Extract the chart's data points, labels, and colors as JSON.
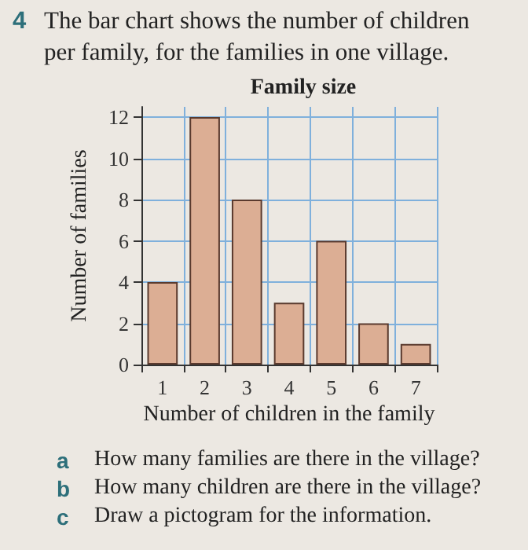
{
  "chart_data": {
    "type": "bar",
    "title": "Family size",
    "xlabel": "Number of children in the family",
    "ylabel": "Number of families",
    "annotations": [
      "4",
      "The bar chart shows the number of children per family, for the families in one village.",
      "a",
      "How many families are there in the village?",
      "b",
      "How many children are there in the village?",
      "c",
      "Draw a pictogram for the information."
    ],
    "categories": [
      "1",
      "2",
      "3",
      "4",
      "5",
      "6",
      "7"
    ],
    "values": [
      4,
      12,
      8,
      3,
      6,
      2,
      1
    ],
    "color": "#dcae94",
    "ylim": [
      0,
      12.5
    ],
    "yticks": [
      0,
      2,
      4,
      6,
      8,
      10,
      12
    ],
    "grid": true
  }
}
